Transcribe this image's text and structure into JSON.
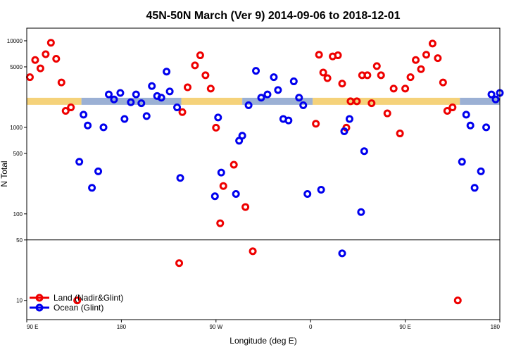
{
  "chart_data": {
    "type": "scatter",
    "title": "45N-50N March (Ver 9)   2014-09-06 to 2018-12-01",
    "xlabel": "Longitude (deg E)",
    "ylabel": "N Total",
    "y_scale": "log",
    "ylim": [
      6,
      14000
    ],
    "x_ticks": [
      {
        "label": "90 E",
        "pos": 0
      },
      {
        "label": "180",
        "pos": 90
      },
      {
        "label": "90 W",
        "pos": 180
      },
      {
        "label": "0",
        "pos": 270
      },
      {
        "label": "90 E",
        "pos": 360
      },
      {
        "label": "180",
        "pos": 450
      }
    ],
    "y_ticks": [
      10,
      50,
      100,
      500,
      1000,
      5000,
      10000
    ],
    "reference_line": 50,
    "band": {
      "value": 2000,
      "land_color": "#f5d27a",
      "ocean_color": "#9bb0d4",
      "segments": [
        {
          "surface": "land",
          "from": 0,
          "to": 52
        },
        {
          "surface": "ocean",
          "from": 52,
          "to": 147
        },
        {
          "surface": "land",
          "from": 147,
          "to": 205
        },
        {
          "surface": "ocean",
          "from": 205,
          "to": 272
        },
        {
          "surface": "land",
          "from": 272,
          "to": 412
        },
        {
          "surface": "ocean",
          "from": 412,
          "to": 450
        }
      ]
    },
    "series": [
      {
        "name": "Land (Nadir&Glint)",
        "color": "#ee0000",
        "points": [
          [
            3,
            3800
          ],
          [
            8,
            6000
          ],
          [
            13,
            4800
          ],
          [
            18,
            7000
          ],
          [
            23,
            9500
          ],
          [
            28,
            6200
          ],
          [
            33,
            3300
          ],
          [
            37,
            1550
          ],
          [
            42,
            1700
          ],
          [
            48,
            10
          ],
          [
            145,
            27
          ],
          [
            148,
            1500
          ],
          [
            153,
            2900
          ],
          [
            160,
            5200
          ],
          [
            165,
            6800
          ],
          [
            170,
            4000
          ],
          [
            175,
            2800
          ],
          [
            180,
            990
          ],
          [
            184,
            78
          ],
          [
            187,
            210
          ],
          [
            197,
            370
          ],
          [
            208,
            120
          ],
          [
            215,
            37
          ],
          [
            275,
            1100
          ],
          [
            278,
            6900
          ],
          [
            282,
            4300
          ],
          [
            286,
            3700
          ],
          [
            291,
            6600
          ],
          [
            296,
            6800
          ],
          [
            300,
            3200
          ],
          [
            304,
            990
          ],
          [
            308,
            2000
          ],
          [
            314,
            2000
          ],
          [
            319,
            4000
          ],
          [
            324,
            4000
          ],
          [
            328,
            1900
          ],
          [
            333,
            5100
          ],
          [
            337,
            4000
          ],
          [
            343,
            1450
          ],
          [
            349,
            2800
          ],
          [
            355,
            850
          ],
          [
            360,
            2800
          ],
          [
            365,
            3800
          ],
          [
            370,
            6000
          ],
          [
            375,
            4700
          ],
          [
            380,
            6900
          ],
          [
            386,
            9300
          ],
          [
            391,
            6300
          ],
          [
            396,
            3300
          ],
          [
            400,
            1550
          ],
          [
            405,
            1700
          ],
          [
            410,
            10
          ]
        ]
      },
      {
        "name": "Ocean (Glint)",
        "color": "#0000ee",
        "points": [
          [
            50,
            400
          ],
          [
            54,
            1400
          ],
          [
            58,
            1050
          ],
          [
            62,
            200
          ],
          [
            68,
            310
          ],
          [
            73,
            1000
          ],
          [
            78,
            2400
          ],
          [
            83,
            2100
          ],
          [
            89,
            2500
          ],
          [
            93,
            1250
          ],
          [
            99,
            1950
          ],
          [
            104,
            2400
          ],
          [
            109,
            1900
          ],
          [
            114,
            1350
          ],
          [
            119,
            3000
          ],
          [
            124,
            2300
          ],
          [
            128,
            2200
          ],
          [
            133,
            4400
          ],
          [
            136,
            2600
          ],
          [
            143,
            1700
          ],
          [
            146,
            260
          ],
          [
            179,
            160
          ],
          [
            182,
            1300
          ],
          [
            185,
            300
          ],
          [
            199,
            170
          ],
          [
            202,
            700
          ],
          [
            205,
            800
          ],
          [
            211,
            1800
          ],
          [
            218,
            4500
          ],
          [
            223,
            2200
          ],
          [
            229,
            2400
          ],
          [
            235,
            3800
          ],
          [
            239,
            2700
          ],
          [
            244,
            1250
          ],
          [
            249,
            1200
          ],
          [
            254,
            3400
          ],
          [
            259,
            2200
          ],
          [
            263,
            1800
          ],
          [
            267,
            170
          ],
          [
            280,
            190
          ],
          [
            300,
            35
          ],
          [
            302,
            900
          ],
          [
            307,
            1250
          ],
          [
            318,
            105
          ],
          [
            321,
            530
          ],
          [
            414,
            400
          ],
          [
            418,
            1400
          ],
          [
            422,
            1050
          ],
          [
            426,
            200
          ],
          [
            432,
            310
          ],
          [
            437,
            1000
          ],
          [
            442,
            2400
          ],
          [
            446,
            2100
          ],
          [
            450,
            2500
          ]
        ]
      }
    ],
    "legend": {
      "position": "bottom-left"
    }
  }
}
